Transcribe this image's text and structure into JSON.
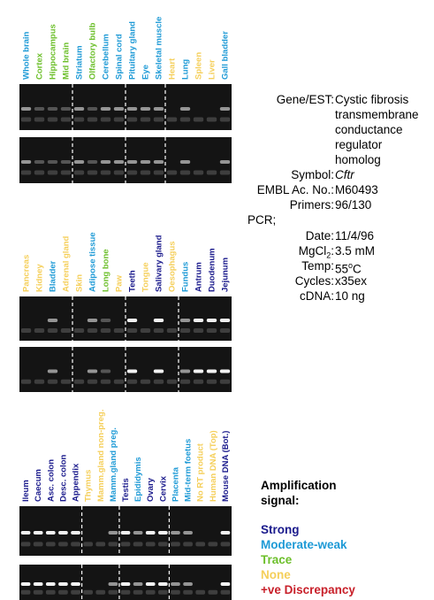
{
  "panels": [
    {
      "lanes": [
        {
          "label": "Whole brain",
          "color": "#1e9ad6"
        },
        {
          "label": "Cortex",
          "color": "#6cbf2a"
        },
        {
          "label": "Hippocampus",
          "color": "#6cbf2a"
        },
        {
          "label": "Mid brain",
          "color": "#6cbf2a"
        },
        {
          "label": "Striatum",
          "color": "#1e9ad6"
        },
        {
          "label": "Olfactory bulb",
          "color": "#6cbf2a"
        },
        {
          "label": "Cerebellum",
          "color": "#1e9ad6"
        },
        {
          "label": "Spinal cord",
          "color": "#1e9ad6"
        },
        {
          "label": "Pituitary gland",
          "color": "#1e9ad6"
        },
        {
          "label": "Eye",
          "color": "#1e9ad6"
        },
        {
          "label": "Skeletal muscle",
          "color": "#1e9ad6"
        },
        {
          "label": "Heart",
          "color": "#f5cf5a"
        },
        {
          "label": "Lung",
          "color": "#1e9ad6"
        },
        {
          "label": "Spleen",
          "color": "#f5cf5a"
        },
        {
          "label": "Liver",
          "color": "#f5cf5a"
        },
        {
          "label": "Gall bladder",
          "color": "#1e9ad6"
        }
      ]
    },
    {
      "lanes": [
        {
          "label": "Pancreas",
          "color": "#f5cf5a"
        },
        {
          "label": "Kidney",
          "color": "#f5cf5a"
        },
        {
          "label": "Bladder",
          "color": "#1e9ad6"
        },
        {
          "label": "Adrenal gland",
          "color": "#f5cf5a"
        },
        {
          "label": "Skin",
          "color": "#f5cf5a"
        },
        {
          "label": "Adipose tissue",
          "color": "#1e9ad6"
        },
        {
          "label": "Long bone",
          "color": "#6cbf2a"
        },
        {
          "label": "Paw",
          "color": "#f5cf5a"
        },
        {
          "label": "Teeth",
          "color": "#1a1a8c"
        },
        {
          "label": "Tongue",
          "color": "#f5cf5a"
        },
        {
          "label": "Salivary gland",
          "color": "#1a1a8c"
        },
        {
          "label": "Oesophagus",
          "color": "#f5cf5a"
        },
        {
          "label": "Fundus",
          "color": "#1e9ad6"
        },
        {
          "label": "Antrum",
          "color": "#1a1a8c"
        },
        {
          "label": "Duodenum",
          "color": "#1a1a8c"
        },
        {
          "label": "Jejunum",
          "color": "#1a1a8c"
        }
      ]
    },
    {
      "lanes": [
        {
          "label": "Ileum",
          "color": "#1a1a8c"
        },
        {
          "label": "Caecum",
          "color": "#1a1a8c"
        },
        {
          "label": "Asc. colon",
          "color": "#1a1a8c"
        },
        {
          "label": "Desc. colon",
          "color": "#1a1a8c"
        },
        {
          "label": "Appendix",
          "color": "#1a1a8c"
        },
        {
          "label": "Thymus",
          "color": "#f5cf5a"
        },
        {
          "label": "Mamm.gland non-preg.",
          "color": "#f5cf5a"
        },
        {
          "label": "Mamm.gland preg.",
          "color": "#1e9ad6"
        },
        {
          "label": "Testis",
          "color": "#1a1a8c"
        },
        {
          "label": "Epididymis",
          "color": "#1e9ad6"
        },
        {
          "label": "Ovary",
          "color": "#1a1a8c"
        },
        {
          "label": "Cervix",
          "color": "#1a1a8c"
        },
        {
          "label": "Placenta",
          "color": "#1e9ad6"
        },
        {
          "label": "Mid-term foetus",
          "color": "#1e9ad6"
        },
        {
          "label": "No RT product",
          "color": "#f5cf5a"
        },
        {
          "label": "Human DNA (Top)",
          "color": "#f5cf5a"
        },
        {
          "label": "Mouse DNA (Bot.)",
          "color": "#1a1a8c"
        }
      ]
    }
  ],
  "info": {
    "gene": {
      "label": "Gene/EST:",
      "value": [
        "Cystic fibrosis",
        "transmembrane",
        "conductance",
        "regulator",
        "homolog"
      ]
    },
    "symbol": {
      "label": "Symbol:",
      "value": "Cftr"
    },
    "embl": {
      "label": "EMBL Ac. No.:",
      "value": "M60493"
    },
    "primers": {
      "label": "Primers:",
      "value": "96/130"
    },
    "pcr": "PCR;",
    "date": {
      "label": "Date:",
      "value": "11/4/96"
    },
    "mgcl2": {
      "label": "MgCl",
      "label_sub": "2",
      "label_end": ":",
      "value": "3.5 mM"
    },
    "temp": {
      "label": "Temp:",
      "value": "55",
      "value_sup": "o",
      "value_end": "C"
    },
    "cycles": {
      "label": "Cycles:",
      "value": "x35ex"
    },
    "cdna": {
      "label": "cDNA:",
      "value": "10 ng"
    }
  },
  "legend": {
    "title": [
      "Amplification",
      "signal:"
    ],
    "items": [
      {
        "label": "Strong",
        "color": "#1a1a8c"
      },
      {
        "label": "Moderate-weak",
        "color": "#1e9ad6"
      },
      {
        "label": "Trace",
        "color": "#6cbf2a"
      },
      {
        "label": "None",
        "color": "#f5cf5a"
      },
      {
        "label": "+ve Discrepancy",
        "color": "#c8202a"
      }
    ]
  }
}
